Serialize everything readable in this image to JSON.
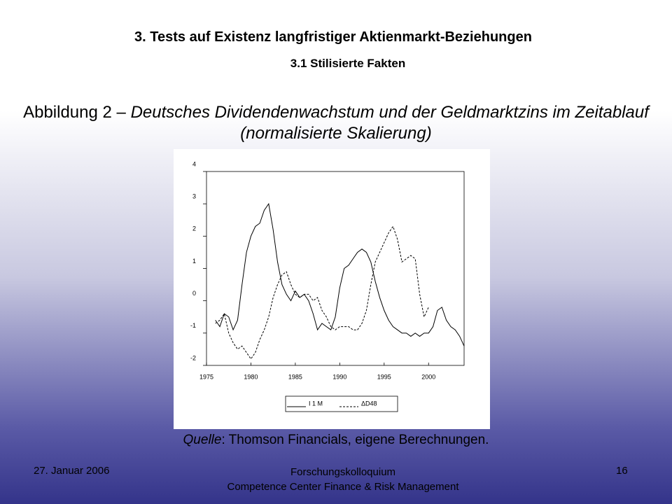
{
  "slide": {
    "title": "3. Tests auf Existenz langfristiger Aktienmarkt-Beziehungen",
    "subtitle": "3.1 Stilisierte Fakten",
    "caption_prefix": "Abbildung 2 – ",
    "caption_italic": "Deutsches Dividendenwachstum und der Geldmarktzins im Zeitablauf (normalisierte Skalierung)",
    "source_label": "Quelle",
    "source_text": ": Thomson Financials, eigene Berechnungen.",
    "footer_date": "27. Januar 2006",
    "footer_center_1": "Forschungskolloquium",
    "footer_center_2": "Competence Center Finance & Risk Management",
    "footer_page": "16"
  },
  "chart_data": {
    "type": "line",
    "x": [
      1976,
      1976.5,
      1977,
      1977.5,
      1978,
      1978.5,
      1979,
      1979.5,
      1980,
      1980.5,
      1981,
      1981.5,
      1982,
      1982.5,
      1983,
      1983.5,
      1984,
      1984.5,
      1985,
      1985.5,
      1986,
      1986.5,
      1987,
      1987.5,
      1988,
      1988.5,
      1989,
      1989.5,
      1990,
      1990.5,
      1991,
      1991.5,
      1992,
      1992.5,
      1993,
      1993.5,
      1994,
      1994.5,
      1995,
      1995.5,
      1996,
      1996.5,
      1997,
      1997.5,
      1998,
      1998.5,
      1999,
      1999.5,
      2000,
      2000.5,
      2001,
      2001.5,
      2002,
      2002.5,
      2003,
      2003.5,
      2004
    ],
    "series": [
      {
        "name": "I 1 M",
        "color": "#000000",
        "dash": false,
        "values": [
          -0.6,
          -0.8,
          -0.4,
          -0.5,
          -0.9,
          -0.6,
          0.5,
          1.5,
          2.0,
          2.3,
          2.4,
          2.8,
          3.0,
          2.2,
          1.2,
          0.5,
          0.2,
          0.0,
          0.3,
          0.1,
          0.2,
          0.0,
          -0.4,
          -0.9,
          -0.7,
          -0.8,
          -0.9,
          -0.5,
          0.4,
          1.0,
          1.1,
          1.3,
          1.5,
          1.6,
          1.5,
          1.2,
          0.6,
          0.1,
          -0.3,
          -0.6,
          -0.8,
          -0.9,
          -1.0,
          -1.0,
          -1.1,
          -1.0,
          -1.1,
          -1.0,
          -1.0,
          -0.8,
          -0.3,
          -0.2,
          -0.6,
          -0.8,
          -0.9,
          -1.1,
          -1.4
        ]
      },
      {
        "name": "ΔD48",
        "color": "#000000",
        "dash": true,
        "values": [
          -0.7,
          -0.6,
          -0.4,
          -1.0,
          -1.3,
          -1.5,
          -1.4,
          -1.6,
          -1.8,
          -1.6,
          -1.2,
          -0.9,
          -0.5,
          0.1,
          0.5,
          0.8,
          0.9,
          0.5,
          0.2,
          0.1,
          0.2,
          0.2,
          0.0,
          0.1,
          -0.3,
          -0.5,
          -0.8,
          -0.9,
          -0.8,
          -0.8,
          -0.8,
          -0.9,
          -0.9,
          -0.7,
          -0.3,
          0.5,
          1.2,
          1.5,
          1.8,
          2.1,
          2.3,
          1.9,
          1.2,
          1.3,
          1.4,
          1.3,
          0.2,
          -0.5,
          -0.2,
          null,
          null,
          null,
          null,
          null,
          null,
          null,
          null
        ]
      }
    ],
    "xlim": [
      1975,
      2004
    ],
    "xticks": [
      1975,
      1980,
      1985,
      1990,
      1995,
      2000
    ],
    "ylim": [
      -2,
      4
    ],
    "yticks": [
      -2,
      -1,
      0,
      1,
      2,
      3,
      4
    ]
  }
}
